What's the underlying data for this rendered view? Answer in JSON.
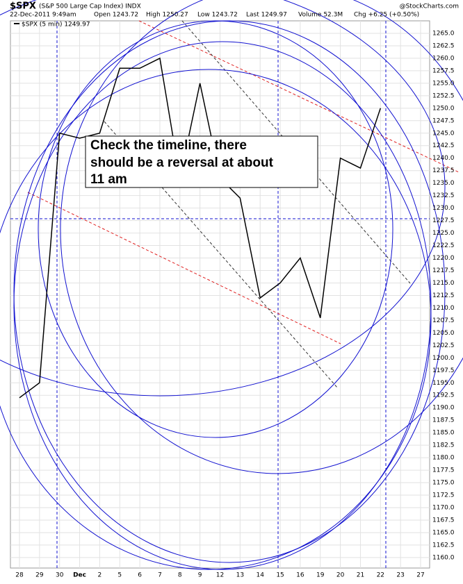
{
  "chart_data": {
    "type": "line",
    "title": "$SPX",
    "subtitle": "(S&P 500 Large Cap Index) INDX",
    "date": "22-Dec-2011 9:49am",
    "quote": [
      "Open 1243.72",
      "High 1250.27",
      "Low 1243.72",
      "Last 1249.97",
      "Volume 52.3M",
      "Chg +6.25 (+0.50%)"
    ],
    "credit": "@StockCharts.com",
    "annotation": [
      "Check the timeline, there",
      "should be a reversal at about",
      "11 am"
    ],
    "categories": [
      "28",
      "29",
      "30",
      "Dec",
      "2",
      "5",
      "6",
      "7",
      "8",
      "9",
      "12",
      "13",
      "14",
      "15",
      "16",
      "19",
      "20",
      "21",
      "22",
      "23",
      "27"
    ],
    "series": [
      {
        "name": "$SPX (5 min) 1249.97",
        "color": "#000000",
        "values": [
          1192,
          1195,
          1245,
          1244,
          1245,
          1258,
          1258,
          1260,
          1236,
          1255,
          1236,
          1232,
          1212,
          1215,
          1220,
          1208,
          1240,
          1238,
          1250,
          null,
          null
        ]
      }
    ],
    "ylim": [
      1157.9,
      1267.5
    ],
    "yticks": [
      {
        "value": 1160,
        "label": "1160.0"
      },
      {
        "value": 1162.5,
        "label": "1162.5"
      },
      {
        "value": 1165,
        "label": "1165.0"
      },
      {
        "value": 1167.5,
        "label": "1167.5"
      },
      {
        "value": 1170,
        "label": "1170.0"
      },
      {
        "value": 1172.5,
        "label": "1172.5"
      },
      {
        "value": 1175,
        "label": "1175.0"
      },
      {
        "value": 1177.5,
        "label": "1177.5"
      },
      {
        "value": 1180,
        "label": "1180.0"
      },
      {
        "value": 1182.5,
        "label": "1182.5"
      },
      {
        "value": 1185,
        "label": "1185.0"
      },
      {
        "value": 1187.5,
        "label": "1187.5"
      },
      {
        "value": 1190,
        "label": "1190.0"
      },
      {
        "value": 1192.5,
        "label": "1192.5"
      },
      {
        "value": 1195,
        "label": "1195.0"
      },
      {
        "value": 1197.5,
        "label": "1197.5"
      },
      {
        "value": 1200,
        "label": "1200.0"
      },
      {
        "value": 1202.5,
        "label": "1202.5"
      },
      {
        "value": 1205,
        "label": "1205.0"
      },
      {
        "value": 1207.5,
        "label": "1207.5"
      },
      {
        "value": 1210,
        "label": "1210.0"
      },
      {
        "value": 1212.5,
        "label": "1212.5"
      },
      {
        "value": 1215,
        "label": "1215.0"
      },
      {
        "value": 1217.5,
        "label": "1217.5"
      },
      {
        "value": 1220,
        "label": "1220.0"
      },
      {
        "value": 1222.5,
        "label": "1222.5"
      },
      {
        "value": 1225,
        "label": "1225.0"
      },
      {
        "value": 1227.5,
        "label": "1227.5"
      },
      {
        "value": 1230,
        "label": "1230.0"
      },
      {
        "value": 1232.5,
        "label": "1232.5"
      },
      {
        "value": 1235,
        "label": "1235.0"
      },
      {
        "value": 1237.5,
        "label": "1237.5"
      },
      {
        "value": 1240,
        "label": "1240.0"
      },
      {
        "value": 1242.5,
        "label": "1242.5"
      },
      {
        "value": 1245,
        "label": "1245.0"
      },
      {
        "value": 1247.5,
        "label": "1247.5"
      },
      {
        "value": 1250,
        "label": "1250.0"
      },
      {
        "value": 1252.5,
        "label": "1252.5"
      },
      {
        "value": 1255,
        "label": "1255.0"
      },
      {
        "value": 1257.5,
        "label": "1257.5"
      },
      {
        "value": 1260,
        "label": "1260.0"
      },
      {
        "value": 1262.5,
        "label": "1262.5"
      },
      {
        "value": 1265,
        "label": "1265.0"
      }
    ],
    "grid": true
  }
}
